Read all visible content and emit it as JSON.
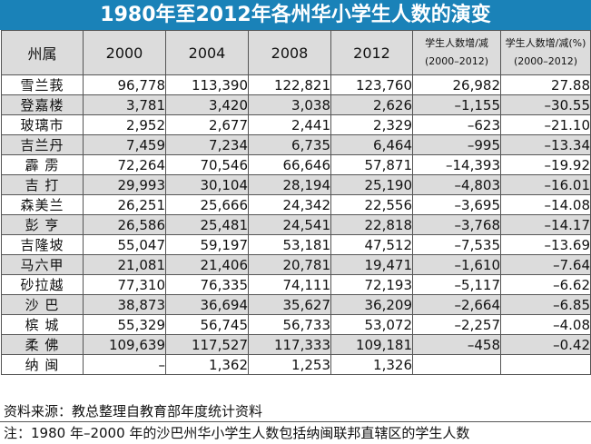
{
  "title": "1980年至2012年各州华小学生人数的演变",
  "table": {
    "headers": {
      "state": "州属",
      "years": [
        "2000",
        "2004",
        "2008",
        "2012"
      ],
      "change_abs": [
        "学生人数增/减",
        "(2000–2012)"
      ],
      "change_pct": [
        "学生人数增/减(%)",
        "(2000–2012)"
      ]
    },
    "rows": [
      [
        "雪兰莪",
        "96,778",
        "113,390",
        "122,821",
        "123,760",
        "26,982",
        "27.88"
      ],
      [
        "登嘉楼",
        "3,781",
        "3,420",
        "3,038",
        "2,626",
        "–1,155",
        "–30.55"
      ],
      [
        "玻璃市",
        "2,952",
        "2,677",
        "2,441",
        "2,329",
        "–623",
        "–21.10"
      ],
      [
        "吉兰丹",
        "7,459",
        "7,234",
        "6,735",
        "6,464",
        "–995",
        "–13.34"
      ],
      [
        "霹 雳",
        "72,264",
        "70,546",
        "66,646",
        "57,871",
        "–14,393",
        "–19.92"
      ],
      [
        "吉 打",
        "29,993",
        "30,104",
        "28,194",
        "25,190",
        "–4,803",
        "–16.01"
      ],
      [
        "森美兰",
        "26,251",
        "25,666",
        "24,342",
        "22,556",
        "–3,695",
        "–14.08"
      ],
      [
        "彭 亨",
        "26,586",
        "25,481",
        "24,541",
        "22,818",
        "–3,768",
        "–14.17"
      ],
      [
        "吉隆坡",
        "55,047",
        "59,197",
        "53,181",
        "47,512",
        "–7,535",
        "–13.69"
      ],
      [
        "马六甲",
        "21,081",
        "21,406",
        "20,781",
        "19,471",
        "–1,610",
        "–7.64"
      ],
      [
        "砂拉越",
        "77,310",
        "76,335",
        "74,111",
        "72,193",
        "–5,117",
        "–6.62"
      ],
      [
        "沙 巴",
        "38,873",
        "36,694",
        "35,627",
        "36,209",
        "–2,664",
        "–6.85"
      ],
      [
        "槟 城",
        "55,329",
        "56,745",
        "56,733",
        "53,072",
        "–2,257",
        "–4.08"
      ],
      [
        "柔 佛",
        "109,639",
        "117,527",
        "117,333",
        "109,181",
        "–458",
        "–0.42"
      ],
      [
        "纳 闽",
        "–",
        "1,362",
        "1,253",
        "1,326",
        "",
        ""
      ]
    ]
  },
  "source": "资料来源：教总整理自教育部年度统计资料",
  "note": "注：1980 年–2000 年的沙巴州华小学生人数包括纳闽联邦直辖区的学生人数"
}
